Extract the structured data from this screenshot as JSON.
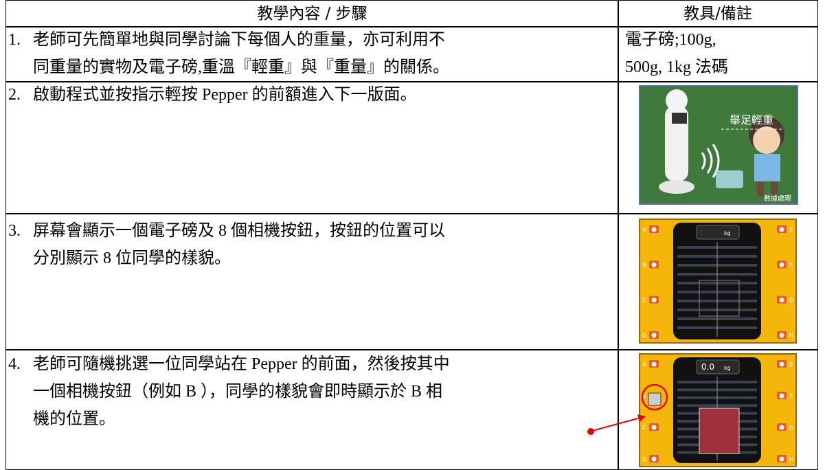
{
  "table": {
    "header": [
      "教學內容 / 步驟",
      "教具/備註"
    ],
    "rows": [
      {
        "number": "1.",
        "lines": [
          "老師可先簡單地與同學討論下每個人的重量，亦可利用不",
          "同重量的實物及電子磅,重溫『輕重』與『重量』的關係。"
        ],
        "notes": [
          "電子磅;100g,",
          "500g, 1kg 法碼"
        ]
      },
      {
        "number": "2.",
        "lines": [
          "啟動程式並按指示輕按 Pepper 的前額進入下一版面。"
        ],
        "image": {
          "title": "舉足輕重",
          "caption": "數據處理"
        }
      },
      {
        "number": "3.",
        "lines": [
          "屏幕會顯示一個電子磅及 8 個相機按鈕，按鈕的位置可以",
          "分別顯示 8 位同學的樣貌。"
        ],
        "image": {
          "unit": "kg",
          "buttons": [
            "A",
            "B",
            "C",
            "D",
            "E",
            "F",
            "G",
            "H"
          ]
        }
      },
      {
        "number": "4.",
        "lines": [
          "老師可隨機挑選一位同學站在 Pepper 的前面，然後按其中",
          "一個相機按鈕（例如 B ），同學的樣貌會即時顯示於 B 相",
          "機的位置。"
        ],
        "image": {
          "reading": "0.0",
          "unit": "kg",
          "buttons": [
            "A",
            "B",
            "C",
            "D",
            "E",
            "F",
            "G",
            "H"
          ]
        }
      }
    ]
  }
}
